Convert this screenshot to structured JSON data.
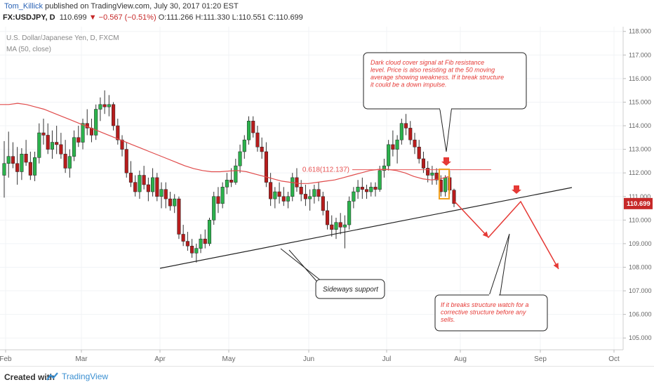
{
  "header": {
    "author": "Tom_Killick",
    "published_text": "published on TradingView.com, July 30, 2017 01:20 EST",
    "symbol": "FX:USDJPY, D",
    "last": "110.699",
    "change": "−0.567 (−0.51%)",
    "ohlc": "O:111.266 H:111.330 L:110.551 C:110.699"
  },
  "chart_data": {
    "type": "candlestick",
    "instrument": "U.S. Dollar/Japanese Yen, D, FXCM",
    "indicator": "MA (50, close)",
    "ylim": [
      104.5,
      118.2
    ],
    "y_ticks": [
      "118.000",
      "117.000",
      "116.000",
      "115.000",
      "114.000",
      "113.000",
      "112.000",
      "111.000",
      "110.000",
      "109.000",
      "108.000",
      "107.000",
      "106.000",
      "105.000"
    ],
    "x_ticks": [
      "Feb",
      "Mar",
      "Apr",
      "May",
      "Jun",
      "Jul",
      "Aug",
      "Sep",
      "Oct"
    ],
    "last_price_label": "110.699",
    "fib_label": "0.618(112.137)",
    "fib_level": 112.137,
    "annotations": {
      "top": "Dark cloud cover signal at Fib resistance level. Price is also resisting at the 50 moving average showing weakness. If it break structure it could be a down impulse.",
      "support": "Sideways support",
      "bottom": "If it breaks structure watch for a corrective structure before any sells."
    },
    "colors": {
      "up": "#2bb24c",
      "down": "#b71c1c",
      "ma": "#e04b4b",
      "fib": "#e65252",
      "arrow": "#e53935",
      "highlight": "#f0a020"
    },
    "candles": [
      [
        111.9,
        113.35,
        110.95,
        112.4
      ],
      [
        112.4,
        113.75,
        111.8,
        112.7
      ],
      [
        112.7,
        113.3,
        112.2,
        112.4
      ],
      [
        112.4,
        113.1,
        111.5,
        112.05
      ],
      [
        112.05,
        113.05,
        111.7,
        112.8
      ],
      [
        112.8,
        113.4,
        112.3,
        112.45
      ],
      [
        112.45,
        112.9,
        111.7,
        111.9
      ],
      [
        111.9,
        112.9,
        111.65,
        112.65
      ],
      [
        112.65,
        114.1,
        112.4,
        113.7
      ],
      [
        113.7,
        114.3,
        113.2,
        113.6
      ],
      [
        113.6,
        114.1,
        112.8,
        113.0
      ],
      [
        113.0,
        113.8,
        112.6,
        113.3
      ],
      [
        113.3,
        114.0,
        112.8,
        113.2
      ],
      [
        113.2,
        113.7,
        112.6,
        112.8
      ],
      [
        112.8,
        113.4,
        112.0,
        112.2
      ],
      [
        112.2,
        113.0,
        111.8,
        112.7
      ],
      [
        112.7,
        113.8,
        112.5,
        113.5
      ],
      [
        113.5,
        114.0,
        113.1,
        113.3
      ],
      [
        113.3,
        114.3,
        113.0,
        114.1
      ],
      [
        114.1,
        114.7,
        113.6,
        113.9
      ],
      [
        113.9,
        114.3,
        113.3,
        113.6
      ],
      [
        113.6,
        114.9,
        113.4,
        114.7
      ],
      [
        114.7,
        115.2,
        114.2,
        114.9
      ],
      [
        114.9,
        115.5,
        114.5,
        114.8
      ],
      [
        114.8,
        115.3,
        114.4,
        114.9
      ],
      [
        114.9,
        115.0,
        113.8,
        114.0
      ],
      [
        114.0,
        114.3,
        113.2,
        113.4
      ],
      [
        113.4,
        113.6,
        112.7,
        113.0
      ],
      [
        113.0,
        113.3,
        111.8,
        112.0
      ],
      [
        112.0,
        112.5,
        111.4,
        111.6
      ],
      [
        111.6,
        111.9,
        111.0,
        111.2
      ],
      [
        111.2,
        112.1,
        110.9,
        111.9
      ],
      [
        111.9,
        112.3,
        111.3,
        111.5
      ],
      [
        111.5,
        111.8,
        110.8,
        111.2
      ],
      [
        111.2,
        112.2,
        111.0,
        111.8
      ],
      [
        111.8,
        112.0,
        110.8,
        111.0
      ],
      [
        111.0,
        111.6,
        110.5,
        111.3
      ],
      [
        111.3,
        111.6,
        110.5,
        110.9
      ],
      [
        110.9,
        111.2,
        110.4,
        110.6
      ],
      [
        110.6,
        111.1,
        110.3,
        110.9
      ],
      [
        110.9,
        111.0,
        109.2,
        109.4
      ],
      [
        109.4,
        109.8,
        108.9,
        109.1
      ],
      [
        109.1,
        109.5,
        108.7,
        108.9
      ],
      [
        108.9,
        109.2,
        108.4,
        108.6
      ],
      [
        108.6,
        109.0,
        108.2,
        108.8
      ],
      [
        108.8,
        109.4,
        108.6,
        109.2
      ],
      [
        109.2,
        109.6,
        108.8,
        109.0
      ],
      [
        109.0,
        110.1,
        108.9,
        110.0
      ],
      [
        110.0,
        111.2,
        109.8,
        111.0
      ],
      [
        111.0,
        111.4,
        110.3,
        110.7
      ],
      [
        110.7,
        111.6,
        110.5,
        111.4
      ],
      [
        111.4,
        112.0,
        111.1,
        111.7
      ],
      [
        111.7,
        112.2,
        111.4,
        111.6
      ],
      [
        111.6,
        112.6,
        111.5,
        112.3
      ],
      [
        112.3,
        113.2,
        112.0,
        112.9
      ],
      [
        112.9,
        113.6,
        112.6,
        113.4
      ],
      [
        113.4,
        114.4,
        113.2,
        114.2
      ],
      [
        114.2,
        114.4,
        113.5,
        113.7
      ],
      [
        113.7,
        114.0,
        112.9,
        113.1
      ],
      [
        113.1,
        113.5,
        112.6,
        112.9
      ],
      [
        112.9,
        113.3,
        111.4,
        111.6
      ],
      [
        111.6,
        112.0,
        110.6,
        110.9
      ],
      [
        110.9,
        111.4,
        110.5,
        111.2
      ],
      [
        111.2,
        111.6,
        110.7,
        111.0
      ],
      [
        111.0,
        111.4,
        110.6,
        110.8
      ],
      [
        110.8,
        111.2,
        110.5,
        111.0
      ],
      [
        111.0,
        112.0,
        110.8,
        111.8
      ],
      [
        111.8,
        112.2,
        111.2,
        111.4
      ],
      [
        111.4,
        111.7,
        110.8,
        111.1
      ],
      [
        111.1,
        111.5,
        110.6,
        110.9
      ],
      [
        110.9,
        111.3,
        110.4,
        111.0
      ],
      [
        111.0,
        111.5,
        110.7,
        111.3
      ],
      [
        111.3,
        111.6,
        110.8,
        111.0
      ],
      [
        111.0,
        111.2,
        110.2,
        110.4
      ],
      [
        110.4,
        110.8,
        109.6,
        109.8
      ],
      [
        109.8,
        110.2,
        109.3,
        109.6
      ],
      [
        109.6,
        110.1,
        109.2,
        109.9
      ],
      [
        109.9,
        110.3,
        109.4,
        109.7
      ],
      [
        109.7,
        110.2,
        108.8,
        109.8
      ],
      [
        109.8,
        111.0,
        109.6,
        110.8
      ],
      [
        110.8,
        111.4,
        110.5,
        111.2
      ],
      [
        111.2,
        111.7,
        110.9,
        111.4
      ],
      [
        111.4,
        111.8,
        110.9,
        111.3
      ],
      [
        111.3,
        111.5,
        110.9,
        111.2
      ],
      [
        111.2,
        111.6,
        111.0,
        111.4
      ],
      [
        111.4,
        111.6,
        111.0,
        111.3
      ],
      [
        111.3,
        112.3,
        111.2,
        112.1
      ],
      [
        112.1,
        112.6,
        111.8,
        112.3
      ],
      [
        112.3,
        113.4,
        112.1,
        113.2
      ],
      [
        113.2,
        113.8,
        112.7,
        113.0
      ],
      [
        113.0,
        113.6,
        112.4,
        113.4
      ],
      [
        113.4,
        114.3,
        113.2,
        114.1
      ],
      [
        114.1,
        114.5,
        113.6,
        113.9
      ],
      [
        113.9,
        114.2,
        113.2,
        113.4
      ],
      [
        113.4,
        113.7,
        112.8,
        113.1
      ],
      [
        113.1,
        113.4,
        112.4,
        112.6
      ],
      [
        112.6,
        112.9,
        112.0,
        112.2
      ],
      [
        112.2,
        112.5,
        111.6,
        111.9
      ],
      [
        111.9,
        112.3,
        111.5,
        112.0
      ],
      [
        112.0,
        112.2,
        111.5,
        111.7
      ],
      [
        111.7,
        111.9,
        111.0,
        111.2
      ],
      [
        111.2,
        111.9,
        111.0,
        111.8
      ],
      [
        111.8,
        112.1,
        111.1,
        111.27
      ],
      [
        111.27,
        111.33,
        110.55,
        110.7
      ]
    ],
    "ma_50": [
      [
        114.9,
        114.9,
        114.95,
        114.9,
        114.8,
        114.7,
        114.55,
        114.4,
        114.25,
        114.1,
        113.95,
        113.8,
        113.65,
        113.5,
        113.35,
        113.2,
        113.05,
        112.9,
        112.75,
        112.6,
        112.45,
        112.3,
        112.18,
        112.1,
        112.05,
        112.05,
        112.08,
        112.1,
        112.05,
        111.95,
        111.85,
        111.75,
        111.65,
        111.6,
        111.55,
        111.55,
        111.6,
        111.65,
        111.7,
        111.8,
        111.9,
        112.0,
        112.1,
        112.15,
        112.15,
        112.1,
        112.0,
        111.85,
        111.75,
        111.7,
        111.75,
        111.85
      ]
    ]
  },
  "footer": {
    "created": "Created with",
    "brand": "TradingView"
  }
}
